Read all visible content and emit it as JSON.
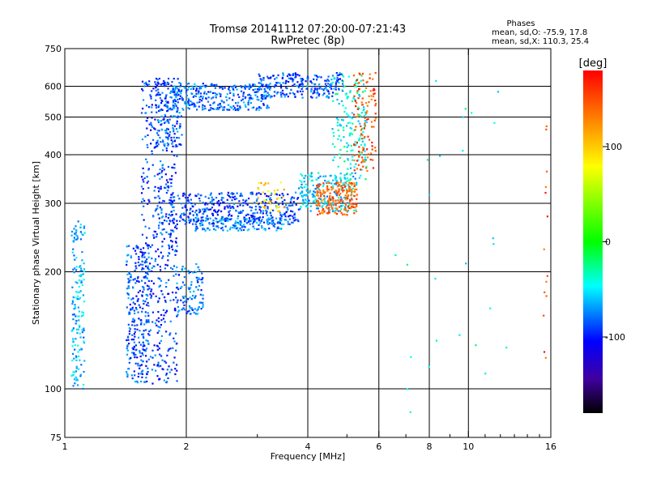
{
  "chart_data": {
    "type": "scatter",
    "title": "Tromsø 20141112 07:20:00-07:21:43",
    "subtitle": "RwPretec (8p)",
    "xlabel": "Frequency [MHz]",
    "ylabel": "Stationary phase Virtual Height [km]",
    "x_scale": "log",
    "y_scale": "log",
    "xlim": [
      1,
      16
    ],
    "ylim": [
      75,
      750
    ],
    "x_ticks": [
      1,
      2,
      4,
      6,
      8,
      10,
      16
    ],
    "x_tick_labels": [
      "1",
      "2",
      "4",
      "6",
      "8",
      "10",
      "16"
    ],
    "x_grid": [
      2,
      4,
      6,
      8,
      10
    ],
    "y_ticks": [
      75,
      100,
      200,
      300,
      400,
      500,
      600,
      750
    ],
    "y_tick_labels": [
      "75",
      "100",
      "200",
      "300",
      "400",
      "500",
      "600",
      "750"
    ],
    "y_grid": [
      100,
      200,
      300,
      400,
      500,
      600
    ],
    "grid": true,
    "annotation": {
      "title": "Phases",
      "line1": "mean, sd,O: -75.9, 17.8",
      "line2": "mean, sd,X: 110.3, 25.4"
    },
    "colorbar": {
      "label": "[deg]",
      "range": [
        -180,
        180
      ],
      "ticks": [
        100,
        0,
        -100
      ],
      "tick_labels": [
        "100",
        "0",
        "-100"
      ],
      "colors": [
        "#ff0000",
        "#ff8000",
        "#ffff00",
        "#00ff00",
        "#00ffff",
        "#0000ff",
        "#4000a0",
        "#000000"
      ]
    },
    "clusters": [
      {
        "f0": 1.04,
        "f1": 1.12,
        "h0": 100,
        "h1": 270,
        "phase": -60,
        "n": 160
      },
      {
        "f0": 1.42,
        "f1": 1.62,
        "h0": 103,
        "h1": 235,
        "phase": -85,
        "n": 240
      },
      {
        "f0": 1.55,
        "f1": 1.9,
        "h0": 103,
        "h1": 620,
        "phase": -90,
        "n": 500
      },
      {
        "f0": 1.68,
        "f1": 1.95,
        "h0": 420,
        "h1": 630,
        "phase": -85,
        "n": 130
      },
      {
        "f0": 1.88,
        "f1": 2.2,
        "h0": 155,
        "h1": 210,
        "phase": -80,
        "n": 110
      },
      {
        "f0": 1.85,
        "f1": 3.2,
        "h0": 520,
        "h1": 610,
        "phase": -80,
        "n": 300
      },
      {
        "f0": 3.0,
        "f1": 4.9,
        "h0": 560,
        "h1": 650,
        "phase": -85,
        "n": 240
      },
      {
        "f0": 1.8,
        "f1": 3.8,
        "h0": 265,
        "h1": 320,
        "phase": -90,
        "n": 420
      },
      {
        "f0": 2.1,
        "f1": 3.5,
        "h0": 255,
        "h1": 275,
        "phase": -75,
        "n": 140
      },
      {
        "f0": 3.8,
        "f1": 5.3,
        "h0": 285,
        "h1": 360,
        "phase": -55,
        "n": 200
      },
      {
        "f0": 4.6,
        "f1": 5.6,
        "h0": 340,
        "h1": 640,
        "phase": -40,
        "n": 170
      },
      {
        "f0": 4.2,
        "f1": 5.3,
        "h0": 280,
        "h1": 340,
        "phase": 140,
        "n": 200
      },
      {
        "f0": 5.2,
        "f1": 5.9,
        "h0": 360,
        "h1": 650,
        "phase": 150,
        "n": 110
      },
      {
        "f0": 3.0,
        "f1": 3.5,
        "h0": 285,
        "h1": 345,
        "phase": 100,
        "n": 40
      },
      {
        "f0": 15.3,
        "f1": 15.7,
        "h0": 120,
        "h1": 500,
        "phase": 150,
        "n": 14
      },
      {
        "f0": 6.2,
        "f1": 12.5,
        "h0": 85,
        "h1": 650,
        "phase": -40,
        "n": 26
      }
    ]
  }
}
